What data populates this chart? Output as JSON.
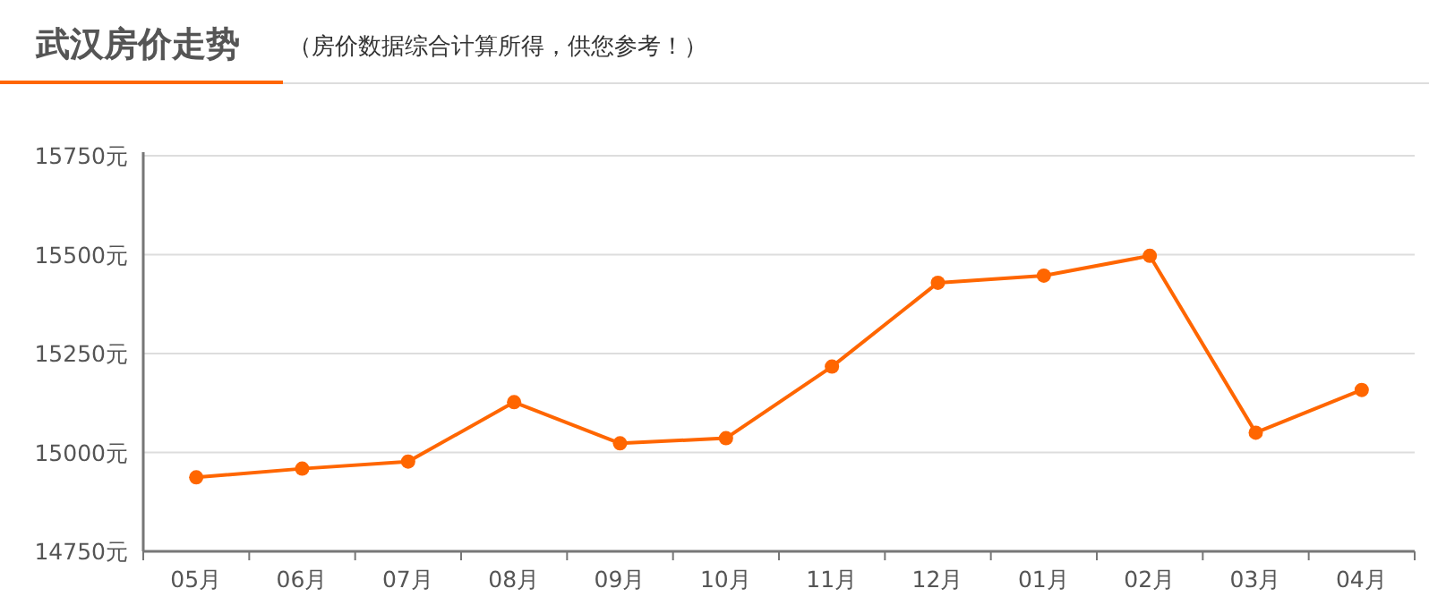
{
  "chart_data": {
    "type": "line",
    "title": "武汉房价走势",
    "subtitle": "（房价数据综合计算所得，供您参考！）",
    "categories": [
      "05月",
      "06月",
      "07月",
      "08月",
      "09月",
      "10月",
      "11月",
      "12月",
      "01月",
      "02月",
      "03月",
      "04月"
    ],
    "series": [
      {
        "color": "#ff6600",
        "values": [
          14937,
          14959,
          14977,
          15127,
          15023,
          15036,
          15217,
          15429,
          15447,
          15497,
          15050,
          15158
        ]
      }
    ],
    "ylim": [
      14750,
      15750
    ],
    "yticks": [
      {
        "value": 14750,
        "label": "14750元"
      },
      {
        "value": 15000,
        "label": "15000元"
      },
      {
        "value": 15250,
        "label": "15250元"
      },
      {
        "value": 15500,
        "label": "15500元"
      },
      {
        "value": 15750,
        "label": "15750元"
      }
    ],
    "grid": "y",
    "marker": "circle"
  }
}
